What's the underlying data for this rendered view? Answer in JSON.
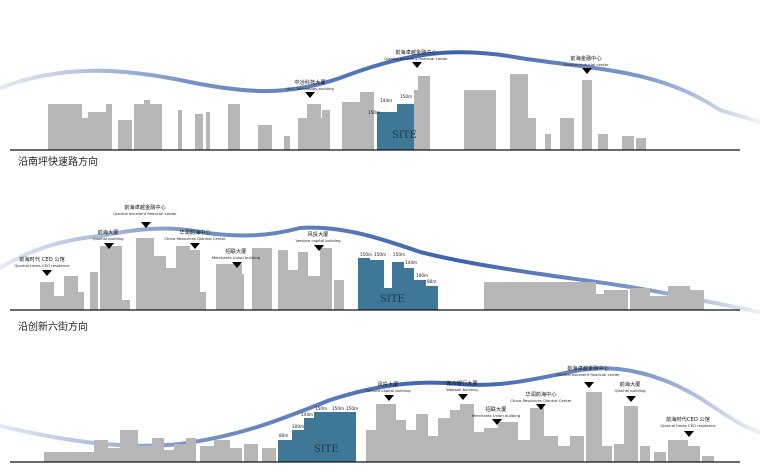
{
  "sections": [
    {
      "caption": "沿南坪快速路方向",
      "site_text": "SITE",
      "heights": [
        "144m",
        "150m",
        "150m"
      ],
      "landmarks": [
        {
          "cn": "中冶科技大厦",
          "en": "MCC Technology building"
        },
        {
          "cn": "前海卓越金融中心",
          "en": "Qianhai excellent financial center"
        },
        {
          "cn": "前海金融中心",
          "en": "Qianhai financial center"
        }
      ]
    },
    {
      "caption": "沿创新六街方向",
      "site_text": "SITE",
      "heights": [
        "150m",
        "150m",
        "150m",
        "144m",
        "100m",
        "80m"
      ],
      "landmarks": [
        {
          "cn": "前海时代 CEO 公馆",
          "en": "Qianhai times CEO residence"
        },
        {
          "cn": "前海大厦",
          "en": "Qianhai building"
        },
        {
          "cn": "前海卓越金融中心",
          "en": "Qianhai excellent financial center"
        },
        {
          "cn": "华润前海中心",
          "en": "China Resources Qianhai Center"
        },
        {
          "cn": "招联大厦",
          "en": "Merchants Union building"
        },
        {
          "cn": "风投大厦",
          "en": "Venture capital building"
        }
      ]
    },
    {
      "caption": "",
      "site_text": "SITE",
      "heights": [
        "80m",
        "100m",
        "144m",
        "150m",
        "150m",
        "150m"
      ],
      "landmarks": [
        {
          "cn": "风投大厦",
          "en": "Venture capital building"
        },
        {
          "cn": "微众银行大厦",
          "en": "Webank building"
        },
        {
          "cn": "招联大厦",
          "en": "Merchants Union building"
        },
        {
          "cn": "华润前海中心",
          "en": "China Resources Qianhai Center"
        },
        {
          "cn": "前海卓越金融中心",
          "en": "Qianhai excellent financial center"
        },
        {
          "cn": "前海大厦",
          "en": "Qianhai building"
        },
        {
          "cn": "前海时代CEO 公馆",
          "en": "Qianhai times CEO residence"
        }
      ]
    }
  ],
  "colors": {
    "building": "#b7b7b7",
    "site": "#3f7896",
    "skyline_curve": "#4a6fb3",
    "ground": "#111111"
  }
}
